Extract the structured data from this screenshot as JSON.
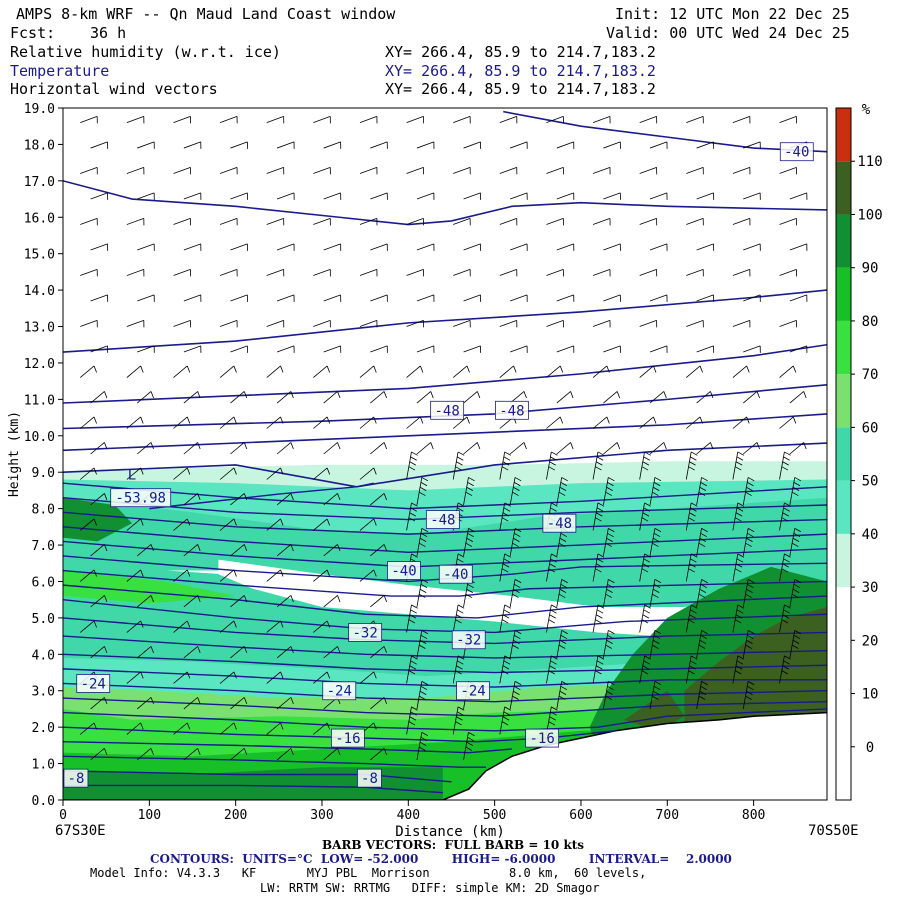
{
  "header": {
    "title": "AMPS 8-km WRF -- Qn Maud Land Coast window",
    "fcst_label": "Fcst:",
    "fcst_value": "36 h",
    "init": "Init: 12 UTC Mon 22 Dec 25",
    "valid": "Valid: 00 UTC Wed 24 Dec 25",
    "field1": "Relative humidity (w.r.t. ice)",
    "field2": "Temperature",
    "field3": "Horizontal wind vectors",
    "xy1": "XY= 266.4, 85.9 to 214.7,183.2",
    "xy2": "XY= 266.4, 85.9 to 214.7,183.2",
    "xy3": "XY= 266.4, 85.9 to 214.7,183.2"
  },
  "chart_data": {
    "type": "heatmap",
    "title": "Cross-section: Relative humidity (w.r.t. ice), Temperature, Horizontal wind vectors",
    "xlabel": "Distance (km)",
    "ylabel": "Height (km)",
    "xlim": [
      0,
      885
    ],
    "ylim": [
      0,
      19
    ],
    "x_ticks": [
      0,
      100,
      200,
      300,
      400,
      500,
      600,
      700,
      800
    ],
    "y_ticks": [
      "0.0",
      "1.0",
      "2.0",
      "3.0",
      "4.0",
      "5.0",
      "6.0",
      "7.0",
      "8.0",
      "9.0",
      "10.0",
      "11.0",
      "12.0",
      "13.0",
      "14.0",
      "15.0",
      "16.0",
      "17.0",
      "18.0",
      "19.0"
    ],
    "left_endpoint": "67S30E",
    "right_endpoint": "70S50E",
    "colorbar": {
      "unit": "%",
      "ticks": [
        "0",
        "10",
        "20",
        "30",
        "40",
        "50",
        "60",
        "70",
        "80",
        "90",
        "100",
        "110"
      ],
      "bins": [
        {
          "from": -10,
          "to": 0,
          "color": "#ffffff"
        },
        {
          "from": 0,
          "to": 10,
          "color": "#ffffff"
        },
        {
          "from": 10,
          "to": 20,
          "color": "#ffffff"
        },
        {
          "from": 20,
          "to": 30,
          "color": "#ffffff"
        },
        {
          "from": 30,
          "to": 40,
          "color": "#c8f5e0"
        },
        {
          "from": 40,
          "to": 50,
          "color": "#5ae6c0"
        },
        {
          "from": 50,
          "to": 60,
          "color": "#40d8a8"
        },
        {
          "from": 60,
          "to": 70,
          "color": "#7ae070"
        },
        {
          "from": 70,
          "to": 80,
          "color": "#38e040"
        },
        {
          "from": 80,
          "to": 90,
          "color": "#18c028"
        },
        {
          "from": 90,
          "to": 100,
          "color": "#109030"
        },
        {
          "from": 100,
          "to": 110,
          "color": "#3c6020"
        },
        {
          "from": 110,
          "to": 120,
          "color": "#c83010"
        }
      ]
    },
    "temperature_contours": {
      "units": "°C",
      "low": -52.0,
      "high": -6.0,
      "interval": 2.0,
      "labels": [
        {
          "text": "-40",
          "x": 850,
          "y": 17.8
        },
        {
          "text": "-48",
          "x": 445,
          "y": 10.7
        },
        {
          "text": "-48",
          "x": 520,
          "y": 10.7
        },
        {
          "text": "-53.98",
          "x": 90,
          "y": 8.3
        },
        {
          "text": "-48",
          "x": 440,
          "y": 7.7
        },
        {
          "text": "-48",
          "x": 575,
          "y": 7.6
        },
        {
          "text": "-40",
          "x": 395,
          "y": 6.3
        },
        {
          "text": "-40",
          "x": 455,
          "y": 6.2
        },
        {
          "text": "-32",
          "x": 350,
          "y": 4.6
        },
        {
          "text": "-32",
          "x": 470,
          "y": 4.4
        },
        {
          "text": "-24",
          "x": 35,
          "y": 3.2
        },
        {
          "text": "-24",
          "x": 320,
          "y": 3.0
        },
        {
          "text": "-24",
          "x": 475,
          "y": 3.0
        },
        {
          "text": "-16",
          "x": 330,
          "y": 1.7
        },
        {
          "text": "-16",
          "x": 555,
          "y": 1.7
        },
        {
          "text": "-8",
          "x": 15,
          "y": 0.6
        },
        {
          "text": "-8",
          "x": 355,
          "y": 0.6
        }
      ]
    },
    "terrain_height_km": {
      "x": [
        0,
        440,
        470,
        490,
        520,
        560,
        600,
        640,
        700,
        760,
        800,
        885
      ],
      "z": [
        0,
        0,
        0.3,
        0.8,
        1.2,
        1.5,
        1.7,
        1.9,
        2.1,
        2.2,
        2.3,
        2.4
      ]
    },
    "low_marker": {
      "text": "L",
      "x": 75,
      "y": 8.8
    }
  },
  "footer": {
    "barb": "BARB VECTORS:  FULL BARB = 10 kts",
    "contours": "CONTOURS:  UNITS=°C  LOW= -52.000        HIGH= -6.0000        INTERVAL=    2.0000",
    "model1": "Model Info: V4.3.3   KF       MYJ PBL  Morrison           8.0 km,  60 levels,",
    "model2": "LW: RRTM SW: RRTMG   DIFF: simple KM: 2D Smagor"
  },
  "colors": {
    "contour": "#1a1a8c",
    "barb": "#000000",
    "title_blue": "#1a1a8c"
  }
}
